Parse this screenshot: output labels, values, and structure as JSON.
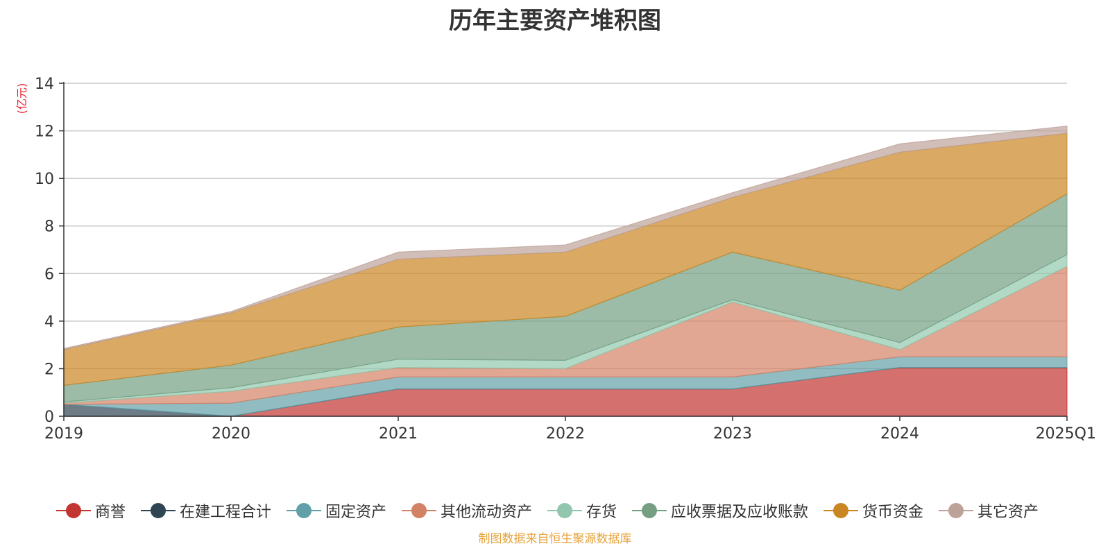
{
  "chart_data": {
    "type": "area",
    "stacked": true,
    "title": "历年主要资产堆积图",
    "ylabel": "(亿元)",
    "xlabel": "",
    "categories": [
      "2019",
      "2020",
      "2021",
      "2022",
      "2023",
      "2024",
      "2025Q1"
    ],
    "ylim": [
      0,
      14
    ],
    "yticks": [
      0,
      2,
      4,
      6,
      8,
      10,
      12,
      14
    ],
    "grid": true,
    "legend_position": "bottom",
    "series": [
      {
        "name": "商誉",
        "color": "#c23531",
        "values": [
          0,
          0,
          1.15,
          1.15,
          1.15,
          2.05,
          2.05
        ]
      },
      {
        "name": "在建工程合计",
        "color": "#2f4554",
        "values": [
          0.5,
          0,
          0,
          0,
          0,
          0,
          0
        ]
      },
      {
        "name": "固定资产",
        "color": "#61a0a8",
        "values": [
          0,
          0.55,
          0.5,
          0.5,
          0.5,
          0.45,
          0.45
        ]
      },
      {
        "name": "其他流动资产",
        "color": "#d48265",
        "values": [
          0.05,
          0.5,
          0.4,
          0.35,
          3.15,
          0.3,
          3.8
        ]
      },
      {
        "name": "存货",
        "color": "#91c7ae",
        "values": [
          0.05,
          0.15,
          0.35,
          0.35,
          0.1,
          0.3,
          0.5
        ]
      },
      {
        "name": "应收票据及应收账款",
        "color": "#749f83",
        "values": [
          0.7,
          0.95,
          1.35,
          1.85,
          2.0,
          2.2,
          2.55
        ]
      },
      {
        "name": "货币资金",
        "color": "#ca8622",
        "values": [
          1.5,
          2.2,
          2.85,
          2.7,
          2.3,
          5.8,
          2.55
        ]
      },
      {
        "name": "其它资产",
        "color": "#bda29a",
        "values": [
          0.05,
          0.05,
          0.3,
          0.3,
          0.2,
          0.35,
          0.3
        ]
      }
    ]
  },
  "source_note": "制图数据来自恒生聚源数据库"
}
